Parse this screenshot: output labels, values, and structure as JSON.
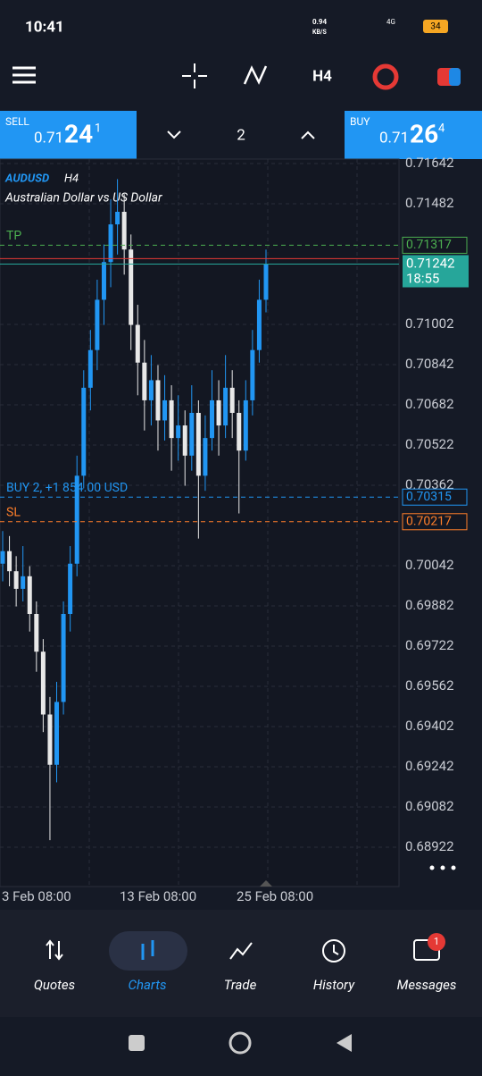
{
  "status_bar": {
    "time": "10:41",
    "speed": "0.94",
    "speed_unit": "KB/S",
    "network": "4G",
    "battery": "34"
  },
  "toolbar": {
    "timeframe": "H4"
  },
  "trade_bar": {
    "sell_label": "SELL",
    "sell_price": {
      "main": "0.71",
      "big": "24",
      "small": "1"
    },
    "lot": "2",
    "buy_label": "BUY",
    "buy_price": {
      "main": "0.71",
      "big": "26",
      "small": "4"
    }
  },
  "chart": {
    "symbol": "AUDUSD",
    "timeframe": "H4",
    "description": "Australian Dollar vs US Dollar",
    "price_ticks": [
      0.71642,
      0.71482,
      0.71002,
      0.70842,
      0.70682,
      0.70522,
      0.70362,
      0.70042,
      0.69882,
      0.69722,
      0.69562,
      0.69402,
      0.69242,
      0.69082,
      0.68922
    ],
    "time_labels": [
      "3 Feb 08:00",
      "13 Feb 08:00",
      "25 Feb 08:00"
    ],
    "tp": {
      "label": "TP",
      "price": 0.71317
    },
    "ask": 0.71264,
    "bid": {
      "price": 0.71242,
      "timer": "18:55"
    },
    "position": {
      "label": "BUY 2,  +1 854.00 USD",
      "price": 0.70315
    },
    "sl": {
      "label": "SL",
      "price": 0.70217
    },
    "candles": [
      [
        0.7005,
        0.7018,
        0.6998,
        0.701
      ],
      [
        0.701,
        0.7016,
        0.6996,
        0.7002
      ],
      [
        0.7002,
        0.7008,
        0.6988,
        0.6995
      ],
      [
        0.6995,
        0.7012,
        0.699,
        0.7
      ],
      [
        0.7,
        0.7004,
        0.6978,
        0.6985
      ],
      [
        0.6985,
        0.699,
        0.6962,
        0.697
      ],
      [
        0.697,
        0.6975,
        0.6938,
        0.6945
      ],
      [
        0.6945,
        0.6952,
        0.6895,
        0.6925
      ],
      [
        0.6925,
        0.6958,
        0.6918,
        0.695
      ],
      [
        0.695,
        0.699,
        0.6945,
        0.6985
      ],
      [
        0.6985,
        0.7012,
        0.6978,
        0.7005
      ],
      [
        0.7005,
        0.7048,
        0.7,
        0.704
      ],
      [
        0.704,
        0.7082,
        0.7035,
        0.7075
      ],
      [
        0.7075,
        0.7098,
        0.7066,
        0.709
      ],
      [
        0.709,
        0.7118,
        0.7082,
        0.711
      ],
      [
        0.711,
        0.7132,
        0.71,
        0.7125
      ],
      [
        0.7125,
        0.715,
        0.7115,
        0.714
      ],
      [
        0.714,
        0.7158,
        0.7128,
        0.7145
      ],
      [
        0.7145,
        0.7152,
        0.712,
        0.713
      ],
      [
        0.713,
        0.7136,
        0.709,
        0.71
      ],
      [
        0.71,
        0.7108,
        0.7072,
        0.7085
      ],
      [
        0.7085,
        0.7094,
        0.7058,
        0.707
      ],
      [
        0.707,
        0.7088,
        0.706,
        0.7078
      ],
      [
        0.7078,
        0.7084,
        0.705,
        0.7062
      ],
      [
        0.7062,
        0.708,
        0.7054,
        0.707
      ],
      [
        0.707,
        0.7076,
        0.7042,
        0.7055
      ],
      [
        0.7055,
        0.7072,
        0.7046,
        0.706
      ],
      [
        0.706,
        0.7066,
        0.7036,
        0.7048
      ],
      [
        0.7048,
        0.7076,
        0.7042,
        0.7065
      ],
      [
        0.7065,
        0.707,
        0.7015,
        0.704
      ],
      [
        0.704,
        0.7064,
        0.7034,
        0.7055
      ],
      [
        0.7055,
        0.7082,
        0.705,
        0.707
      ],
      [
        0.707,
        0.7078,
        0.7048,
        0.706
      ],
      [
        0.706,
        0.7088,
        0.7055,
        0.7075
      ],
      [
        0.7075,
        0.7082,
        0.7055,
        0.7065
      ],
      [
        0.7065,
        0.707,
        0.7025,
        0.705
      ],
      [
        0.705,
        0.7078,
        0.7046,
        0.707
      ],
      [
        0.707,
        0.7098,
        0.7064,
        0.709
      ],
      [
        0.709,
        0.7118,
        0.7085,
        0.711
      ],
      [
        0.711,
        0.713,
        0.7105,
        0.71242
      ]
    ]
  },
  "nav": {
    "items": [
      "Quotes",
      "Charts",
      "Trade",
      "History",
      "Messages"
    ],
    "badge": "1"
  }
}
